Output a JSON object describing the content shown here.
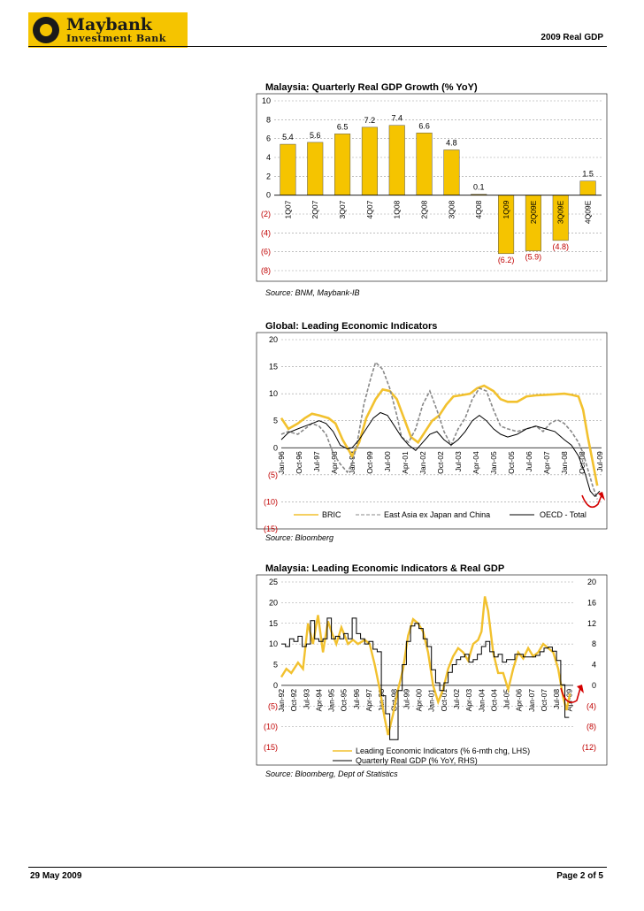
{
  "header": {
    "logo_line1": "Maybank",
    "logo_line2": "Investment Bank",
    "report_title": "2009 Real GDP"
  },
  "footer": {
    "date": "29 May 2009",
    "page": "Page 2 of 5"
  },
  "colors": {
    "bar": "#f5c400",
    "bric": "#f2c12e",
    "eastasia": "#888888",
    "oecd": "#000000",
    "negative_label": "#c00000",
    "arrow": "#d40000"
  },
  "chart_data": [
    {
      "type": "bar",
      "title": "Malaysia: Quarterly Real GDP Growth (% YoY)",
      "source": "Source: BNM, Maybank-IB",
      "categories": [
        "1Q07",
        "2Q07",
        "3Q07",
        "4Q07",
        "1Q08",
        "2Q08",
        "3Q08",
        "4Q08",
        "1Q09",
        "2Q09E",
        "3Q09E",
        "4Q09E"
      ],
      "values": [
        5.4,
        5.6,
        6.5,
        7.2,
        7.4,
        6.6,
        4.8,
        0.1,
        -6.2,
        -5.9,
        -4.8,
        1.5
      ],
      "value_labels": [
        "5.4",
        "5.6",
        "6.5",
        "7.2",
        "7.4",
        "6.6",
        "4.8",
        "0.1",
        "(6.2)",
        "(5.9)",
        "(4.8)",
        "1.5"
      ],
      "ylim": [
        -8,
        10
      ],
      "yticks": [
        10,
        8,
        6,
        4,
        2,
        0,
        -2,
        -4,
        -6,
        -8
      ],
      "ytick_labels": [
        "10",
        "8",
        "6",
        "4",
        "2",
        "0",
        "(2)",
        "(4)",
        "(6)",
        "(8)"
      ]
    },
    {
      "type": "line",
      "title": "Global: Leading Economic Indicators",
      "source": "Source: Bloomberg",
      "ylim": [
        -15,
        20
      ],
      "yticks": [
        20,
        15,
        10,
        5,
        0,
        -5,
        -10,
        -15
      ],
      "ytick_labels": [
        "20",
        "15",
        "10",
        "5",
        "0",
        "(5)",
        "(10)",
        "(15)"
      ],
      "xlim": [
        1996.0,
        2009.58
      ],
      "xtick_labels": [
        "Jan-96",
        "Oct-96",
        "Jul-97",
        "Apr-98",
        "Jan-99",
        "Oct-99",
        "Jul-00",
        "Apr-01",
        "Jan-02",
        "Oct-02",
        "Jul-03",
        "Apr-04",
        "Jan-05",
        "Oct-05",
        "Jul-06",
        "Apr-07",
        "Jan-08",
        "Oct-08",
        "Jul-09"
      ],
      "xtick_values": [
        1996.0,
        1996.75,
        1997.5,
        1998.25,
        1999.0,
        1999.75,
        2000.5,
        2001.25,
        2002.0,
        2002.75,
        2003.5,
        2004.25,
        2005.0,
        2005.75,
        2006.5,
        2007.25,
        2008.0,
        2008.75,
        2009.5
      ],
      "legend": [
        "BRIC",
        "East Asia ex Japan and China",
        "OECD - Total"
      ],
      "series": [
        {
          "name": "BRIC",
          "x": [
            1996.0,
            1996.3,
            1996.7,
            1997.0,
            1997.3,
            1997.6,
            1998.0,
            1998.3,
            1998.6,
            1999.0,
            1999.3,
            1999.6,
            2000.0,
            2000.3,
            2000.6,
            2000.9,
            2001.2,
            2001.5,
            2001.8,
            2002.1,
            2002.4,
            2002.7,
            2003.0,
            2003.3,
            2003.6,
            2004.0,
            2004.3,
            2004.6,
            2005.0,
            2005.3,
            2005.6,
            2006.0,
            2006.4,
            2006.8,
            2007.2,
            2007.6,
            2008.0,
            2008.3,
            2008.6,
            2008.8,
            2009.0,
            2009.2,
            2009.4
          ],
          "y": [
            5.5,
            3.5,
            4.5,
            5.5,
            6.3,
            6.0,
            5.5,
            4.5,
            1.5,
            -1.5,
            1.0,
            5.5,
            9.0,
            10.8,
            10.5,
            9.0,
            5.5,
            2.0,
            1.0,
            3.0,
            5.0,
            6.0,
            8.0,
            9.5,
            9.7,
            10.0,
            11.0,
            11.5,
            10.5,
            9.0,
            8.5,
            8.5,
            9.5,
            9.7,
            9.8,
            9.9,
            10.0,
            9.8,
            9.5,
            7.0,
            2.0,
            -2.5,
            -7.0
          ]
        },
        {
          "name": "East Asia ex Japan and China",
          "x": [
            1996.0,
            1996.3,
            1996.7,
            1997.0,
            1997.3,
            1997.6,
            1997.9,
            1998.2,
            1998.5,
            1998.8,
            1999.0,
            1999.2,
            1999.5,
            1999.8,
            2000.0,
            2000.3,
            2000.6,
            2000.9,
            2001.1,
            2001.4,
            2001.7,
            2002.0,
            2002.3,
            2002.6,
            2002.9,
            2003.2,
            2003.5,
            2003.8,
            2004.1,
            2004.4,
            2004.7,
            2005.0,
            2005.3,
            2005.6,
            2006.0,
            2006.4,
            2006.8,
            2007.1,
            2007.4,
            2007.7,
            2008.0,
            2008.3,
            2008.6,
            2008.8,
            2009.0,
            2009.2,
            2009.4
          ],
          "y": [
            2.5,
            3.0,
            2.5,
            3.5,
            4.5,
            4.0,
            2.5,
            -1.0,
            -3.0,
            -4.5,
            -3.0,
            0.5,
            8.0,
            13.0,
            15.8,
            14.5,
            11.0,
            6.0,
            2.0,
            1.0,
            3.5,
            8.0,
            10.5,
            7.0,
            3.0,
            0.5,
            3.5,
            5.5,
            9.0,
            11.0,
            10.5,
            7.0,
            4.0,
            3.5,
            3.0,
            3.5,
            4.0,
            3.0,
            4.5,
            5.2,
            4.5,
            3.0,
            1.0,
            -1.0,
            -4.0,
            -7.0,
            -9.5
          ]
        },
        {
          "name": "OECD - Total",
          "x": [
            1996.0,
            1996.3,
            1996.7,
            1997.0,
            1997.3,
            1997.6,
            1997.9,
            1998.2,
            1998.5,
            1998.8,
            1999.0,
            1999.3,
            1999.6,
            1999.9,
            2000.2,
            2000.5,
            2000.8,
            2001.1,
            2001.4,
            2001.7,
            2002.0,
            2002.3,
            2002.6,
            2002.9,
            2003.2,
            2003.5,
            2003.8,
            2004.1,
            2004.4,
            2004.7,
            2005.0,
            2005.3,
            2005.6,
            2006.0,
            2006.4,
            2006.8,
            2007.2,
            2007.6,
            2008.0,
            2008.3,
            2008.6,
            2008.9,
            2009.1,
            2009.3,
            2009.5
          ],
          "y": [
            1.5,
            2.8,
            3.5,
            4.0,
            4.5,
            5.0,
            4.5,
            3.0,
            0.5,
            -0.2,
            0.0,
            1.5,
            3.5,
            5.5,
            6.5,
            6.0,
            4.0,
            2.0,
            0.5,
            -0.5,
            1.0,
            2.5,
            3.0,
            1.5,
            0.5,
            1.5,
            3.0,
            5.0,
            6.0,
            5.0,
            3.5,
            2.5,
            2.0,
            2.5,
            3.5,
            4.0,
            3.5,
            3.0,
            1.5,
            0.5,
            -1.5,
            -5.0,
            -8.0,
            -9.0,
            -8.0
          ]
        }
      ]
    },
    {
      "type": "line",
      "title": "Malaysia: Leading Economic Indicators & Real GDP",
      "source": "Source: Bloomberg, Dept of Statistics",
      "ylim": [
        -15,
        25
      ],
      "yticks": [
        25,
        20,
        15,
        10,
        5,
        0,
        -5,
        -10,
        -15
      ],
      "ytick_labels": [
        "25",
        "20",
        "15",
        "10",
        "5",
        "0",
        "(5)",
        "(10)",
        "(15)"
      ],
      "y2lim": [
        -12,
        20
      ],
      "y2ticks": [
        20,
        16,
        12,
        8,
        4,
        0,
        -4,
        -8,
        -12
      ],
      "y2tick_labels": [
        "20",
        "16",
        "12",
        "8",
        "4",
        "0",
        "(4)",
        "(8)",
        "(12)"
      ],
      "xlim": [
        1992.0,
        2009.5
      ],
      "xtick_labels": [
        "Jan-92",
        "Oct-92",
        "Jul-93",
        "Apr-94",
        "Jan-95",
        "Oct-95",
        "Jul-96",
        "Apr-97",
        "Jan-98",
        "Oct-98",
        "Jul-99",
        "Apr-00",
        "Jan-01",
        "Oct-01",
        "Jul-02",
        "Apr-03",
        "Jan-04",
        "Oct-04",
        "Jul-05",
        "Apr-06",
        "Jan-07",
        "Oct-07",
        "Jul-08",
        "Apr-09"
      ],
      "xtick_values": [
        1992.0,
        1992.75,
        1993.5,
        1994.25,
        1995.0,
        1995.75,
        1996.5,
        1997.25,
        1998.0,
        1998.75,
        1999.5,
        2000.25,
        2001.0,
        2001.75,
        2002.5,
        2003.25,
        2004.0,
        2004.75,
        2005.5,
        2006.25,
        2007.0,
        2007.75,
        2008.5,
        2009.25
      ],
      "legend": [
        "Leading Economic Indicators (% 6-mth chg, LHS)",
        "Quarterly Real GDP (% YoY, RHS)"
      ],
      "series": [
        {
          "name": "Leading Economic Indicators (% 6-mth chg, LHS)",
          "axis": "left",
          "x": [
            1992.0,
            1992.3,
            1992.6,
            1993.0,
            1993.3,
            1993.6,
            1993.9,
            1994.2,
            1994.5,
            1994.8,
            1995.0,
            1995.3,
            1995.6,
            1996.0,
            1996.3,
            1996.6,
            1997.0,
            1997.3,
            1997.6,
            1997.9,
            1998.2,
            1998.4,
            1998.7,
            1999.0,
            1999.3,
            1999.6,
            1999.9,
            2000.2,
            2000.5,
            2000.8,
            2001.1,
            2001.4,
            2001.7,
            2002.0,
            2002.3,
            2002.6,
            2002.9,
            2003.2,
            2003.5,
            2003.8,
            2004.0,
            2004.2,
            2004.4,
            2004.7,
            2005.0,
            2005.3,
            2005.6,
            2005.9,
            2006.2,
            2006.5,
            2006.8,
            2007.1,
            2007.4,
            2007.7,
            2008.0,
            2008.3,
            2008.6,
            2008.9,
            2009.1,
            2009.3
          ],
          "y": [
            2.0,
            4.0,
            3.0,
            5.5,
            4.0,
            15.0,
            10.0,
            17.0,
            8.0,
            15.5,
            13.0,
            10.0,
            14.0,
            10.0,
            11.0,
            10.0,
            11.0,
            10.0,
            5.0,
            -1.0,
            -8.0,
            -12.0,
            -7.0,
            -1.0,
            4.0,
            12.0,
            16.0,
            15.0,
            13.0,
            8.0,
            0.0,
            -4.0,
            -1.0,
            4.0,
            7.0,
            9.0,
            8.0,
            6.0,
            10.0,
            11.0,
            13.0,
            21.5,
            18.0,
            8.0,
            3.0,
            3.0,
            -1.0,
            4.0,
            8.0,
            6.5,
            9.0,
            7.0,
            8.0,
            10.0,
            9.0,
            8.0,
            4.0,
            -3.0,
            -6.0,
            -2.0
          ]
        },
        {
          "name": "Quarterly Real GDP (% YoY, RHS)",
          "axis": "right",
          "x": [
            1992.0,
            1992.25,
            1992.5,
            1992.75,
            1993.0,
            1993.25,
            1993.5,
            1993.75,
            1994.0,
            1994.25,
            1994.5,
            1994.75,
            1995.0,
            1995.25,
            1995.5,
            1995.75,
            1996.0,
            1996.25,
            1996.5,
            1996.75,
            1997.0,
            1997.25,
            1997.5,
            1997.75,
            1998.0,
            1998.25,
            1998.5,
            1998.75,
            1999.0,
            1999.25,
            1999.5,
            1999.75,
            2000.0,
            2000.25,
            2000.5,
            2000.75,
            2001.0,
            2001.25,
            2001.5,
            2001.75,
            2002.0,
            2002.25,
            2002.5,
            2002.75,
            2003.0,
            2003.25,
            2003.5,
            2003.75,
            2004.0,
            2004.25,
            2004.5,
            2004.75,
            2005.0,
            2005.25,
            2005.5,
            2005.75,
            2006.0,
            2006.25,
            2006.5,
            2006.75,
            2007.0,
            2007.25,
            2007.5,
            2007.75,
            2008.0,
            2008.25,
            2008.5,
            2008.75,
            2009.0
          ],
          "y": [
            8.0,
            7.5,
            9.0,
            8.5,
            9.5,
            7.5,
            8.0,
            12.5,
            9.0,
            8.5,
            9.0,
            13.0,
            9.0,
            9.5,
            9.0,
            10.0,
            9.0,
            13.0,
            10.0,
            9.0,
            8.0,
            8.5,
            7.0,
            6.5,
            -2.0,
            -5.5,
            -10.5,
            -10.5,
            -1.0,
            4.0,
            8.5,
            11.5,
            12.0,
            11.0,
            9.0,
            7.5,
            3.0,
            0.5,
            -1.0,
            0.5,
            2.5,
            4.0,
            5.0,
            5.5,
            6.0,
            4.5,
            5.0,
            6.0,
            7.5,
            8.5,
            6.5,
            5.5,
            6.0,
            4.5,
            5.0,
            5.0,
            6.0,
            6.0,
            5.5,
            5.5,
            5.5,
            5.8,
            6.5,
            7.2,
            7.4,
            6.6,
            4.8,
            0.1,
            -6.2
          ]
        }
      ]
    }
  ]
}
